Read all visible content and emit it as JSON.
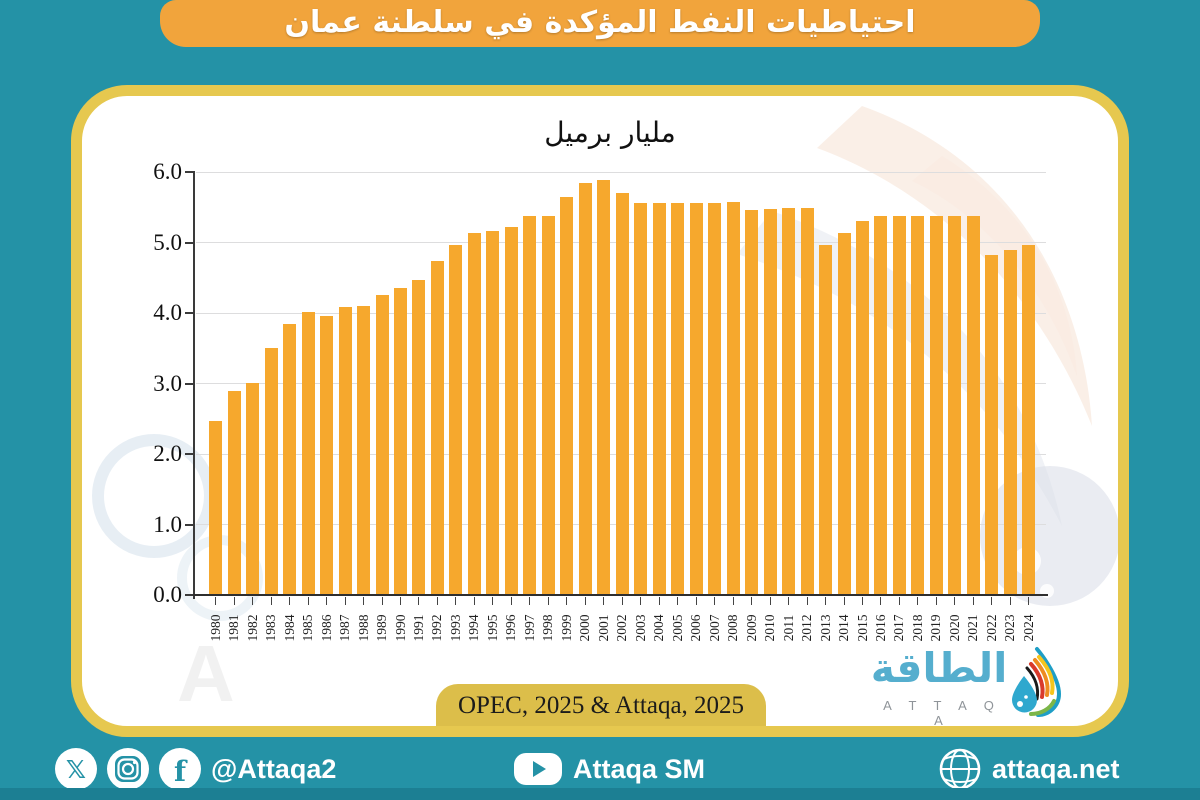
{
  "banner": {
    "title": "احتياطيات النفط المؤكدة في سلطنة عمان"
  },
  "chart_data": {
    "type": "bar",
    "title": "مليار برميل",
    "xlabel": "",
    "ylabel": "مليار برميل",
    "ylim": [
      0,
      6
    ],
    "ytick_step": 1.0,
    "grid": true,
    "bar_color": "#F6A82D",
    "categories": [
      "1980",
      "1981",
      "1982",
      "1983",
      "1984",
      "1985",
      "1986",
      "1987",
      "1988",
      "1989",
      "1990",
      "1991",
      "1992",
      "1993",
      "1994",
      "1995",
      "1996",
      "1997",
      "1998",
      "1999",
      "2000",
      "2001",
      "2002",
      "2003",
      "2004",
      "2005",
      "2006",
      "2007",
      "2008",
      "2009",
      "2010",
      "2011",
      "2012",
      "2013",
      "2014",
      "2015",
      "2016",
      "2017",
      "2018",
      "2019",
      "2020",
      "2021",
      "2022",
      "2023",
      "2024"
    ],
    "values": [
      2.47,
      2.9,
      3.0,
      3.5,
      3.85,
      4.02,
      3.96,
      4.08,
      4.1,
      4.26,
      4.36,
      4.47,
      4.74,
      4.97,
      5.14,
      5.17,
      5.22,
      5.38,
      5.38,
      5.65,
      5.84,
      5.89,
      5.7,
      5.56,
      5.56,
      5.56,
      5.56,
      5.56,
      5.57,
      5.46,
      5.48,
      5.49,
      5.49,
      4.97,
      5.14,
      5.3,
      5.37,
      5.37,
      5.37,
      5.37,
      5.37,
      5.37,
      4.82,
      4.89,
      4.97
    ]
  },
  "source": {
    "label": "OPEC, 2025 & Attaqa, 2025"
  },
  "logo": {
    "arabic": "الطاقة",
    "latin": "A T T A Q A"
  },
  "footer": {
    "social_handle": "@Attaqa2",
    "youtube_label": "Attaqa SM",
    "website_label": "attaqa.net"
  },
  "colors": {
    "background_teal": "#2492A6",
    "gold_border": "#E6C84F",
    "banner_orange": "#F1A43C",
    "bar_orange": "#F6A82D",
    "source_pill": "#DCBE4A",
    "logo_blue": "#55AECE"
  }
}
